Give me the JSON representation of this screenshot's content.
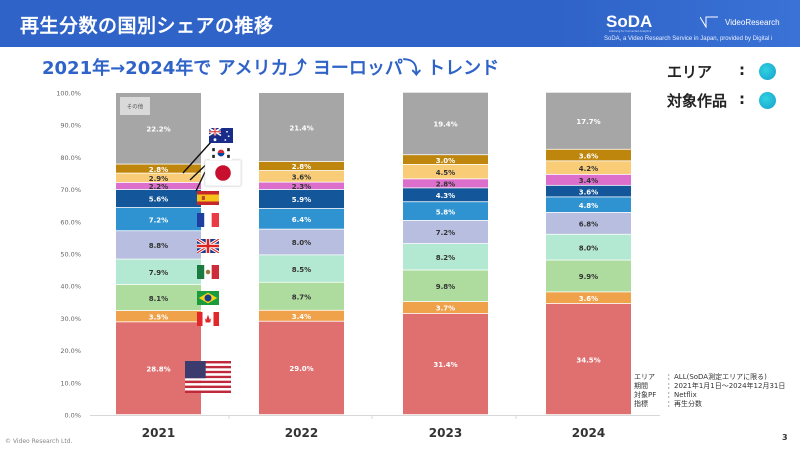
{
  "header": {
    "title": "再生分数の国別シェアの推移",
    "brand": "SoDA",
    "brand_tagline": "Listening for Connected Analytics",
    "partner": "VideoResearch",
    "provided_by": "SoDA, a Video Research Service in Japan, provided by Digital i"
  },
  "subtitle": "2021年→2024年で アメリカ⤴ ヨーロッパ⤵ トレンド",
  "legend_panel": {
    "area_label": "エリア",
    "works_label": "対象作品",
    "colon": ":",
    "area_color": "#22b5d6",
    "works_color": "#22b5d6"
  },
  "notes": [
    {
      "key": "エリア",
      "value": "：ALL(SoDA測定エリアに限る)"
    },
    {
      "key": "期間",
      "value": "：2021年1月1日～2024年12月31日"
    },
    {
      "key": "対象PF",
      "value": "：Netflix"
    },
    {
      "key": "指標",
      "value": "：再生分数"
    }
  ],
  "footer": {
    "copyright": "© Video Research Ltd.",
    "page_number": "3"
  },
  "chart_data": {
    "type": "bar",
    "stacked": true,
    "percent": true,
    "title": "再生分数の国別シェアの推移",
    "xlabel": "",
    "ylabel": "",
    "categories": [
      "2021",
      "2022",
      "2023",
      "2024"
    ],
    "ylim": [
      0,
      100
    ],
    "yticks": [
      "0.0%",
      "10.0%",
      "20.0%",
      "30.0%",
      "40.0%",
      "50.0%",
      "60.0%",
      "70.0%",
      "80.0%",
      "90.0%",
      "100.0%"
    ],
    "grid": false,
    "legend": "flags-right-of-first-bar",
    "other_label": "その他",
    "series": [
      {
        "name": "アメリカ",
        "flag": "us",
        "color": "#e07070",
        "label_color": "#ffffff",
        "values": [
          28.8,
          29.0,
          31.4,
          34.5
        ]
      },
      {
        "name": "カナダ",
        "flag": "ca",
        "color": "#f0a24a",
        "label_color": "#ffffff",
        "values": [
          3.5,
          3.4,
          3.7,
          3.6
        ]
      },
      {
        "name": "ブラジル",
        "flag": "br",
        "color": "#addc9e",
        "label_color": "#333333",
        "values": [
          8.1,
          8.7,
          9.8,
          9.9
        ]
      },
      {
        "name": "メキシコ",
        "flag": "mx",
        "color": "#b3e8d2",
        "label_color": "#333333",
        "values": [
          7.9,
          8.5,
          8.2,
          8.0
        ]
      },
      {
        "name": "イギリス",
        "flag": "gb",
        "color": "#b8bedf",
        "label_color": "#333333",
        "values": [
          8.8,
          8.0,
          7.2,
          6.8
        ]
      },
      {
        "name": "フランス",
        "flag": "fr",
        "color": "#2e93d0",
        "label_color": "#ffffff",
        "values": [
          7.2,
          6.4,
          5.8,
          4.8
        ]
      },
      {
        "name": "スペイン",
        "flag": "es",
        "color": "#135699",
        "label_color": "#ffffff",
        "values": [
          5.6,
          5.9,
          4.3,
          3.6
        ]
      },
      {
        "name": "日本",
        "flag": "jp",
        "color": "#db6fcb",
        "label_color": "#333333",
        "values": [
          2.2,
          2.3,
          2.8,
          3.4
        ]
      },
      {
        "name": "韓国",
        "flag": "kr",
        "color": "#f9cd78",
        "label_color": "#333333",
        "values": [
          2.9,
          3.6,
          4.5,
          4.2
        ]
      },
      {
        "name": "オーストラリア",
        "flag": "au",
        "color": "#bf860d",
        "label_color": "#ffffff",
        "values": [
          2.8,
          2.8,
          3.0,
          3.6
        ]
      },
      {
        "name": "その他",
        "flag": "",
        "color": "#a6a6a6",
        "label_color": "#ffffff",
        "values": [
          22.2,
          21.4,
          19.4,
          17.7
        ]
      }
    ]
  }
}
